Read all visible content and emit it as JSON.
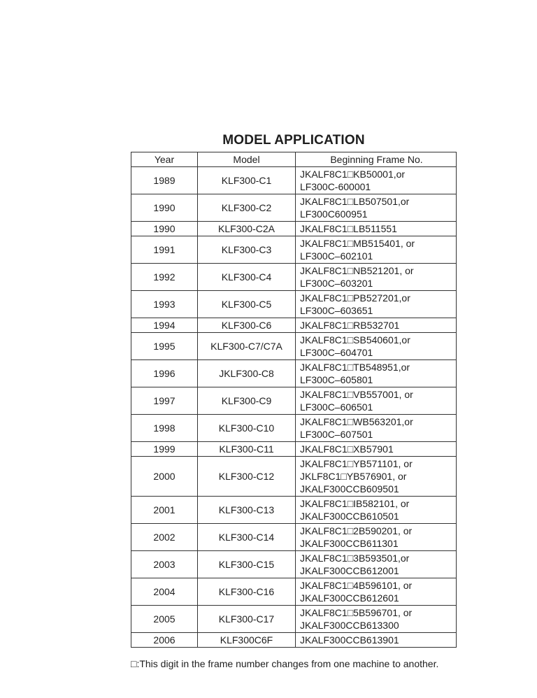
{
  "title": "MODEL APPLICATION",
  "headers": {
    "year": "Year",
    "model": "Model",
    "frame": "Beginning Frame No."
  },
  "rows": [
    {
      "year": "1989",
      "model": "KLF300-C1",
      "frame": [
        "JKALF8C1□KB50001,or",
        "LF300C-600001"
      ]
    },
    {
      "year": "1990",
      "model": "KLF300-C2",
      "frame": [
        "JKALF8C1□LB507501,or",
        "LF300C600951"
      ]
    },
    {
      "year": "1990",
      "model": "KLF300-C2A",
      "frame": [
        "JKALF8C1□LB511551"
      ]
    },
    {
      "year": "1991",
      "model": "KLF300-C3",
      "frame": [
        "JKALF8C1□MB515401, or",
        "LF300C–602101"
      ]
    },
    {
      "year": "1992",
      "model": "KLF300-C4",
      "frame": [
        "JKALF8C1□NB521201, or",
        "LF300C–603201"
      ]
    },
    {
      "year": "1993",
      "model": "KLF300-C5",
      "frame": [
        "JKALF8C1□PB527201,or",
        "LF300C–603651"
      ]
    },
    {
      "year": "1994",
      "model": "KLF300-C6",
      "frame": [
        "JKALF8C1□RB532701"
      ]
    },
    {
      "year": "1995",
      "model": "KLF300-C7/C7A",
      "frame": [
        "JKALF8C1□SB540601,or",
        "LF300C–604701"
      ]
    },
    {
      "year": "1996",
      "model": "JKLF300-C8",
      "frame": [
        "JKALF8C1□TB548951,or",
        "LF300C–605801"
      ]
    },
    {
      "year": "1997",
      "model": "KLF300-C9",
      "frame": [
        "JKALF8C1□VB557001, or",
        "LF300C–606501"
      ]
    },
    {
      "year": "1998",
      "model": "KLF300-C10",
      "frame": [
        "JKALF8C1□WB563201,or",
        "LF300C–607501"
      ]
    },
    {
      "year": "1999",
      "model": "KLF300-C11",
      "frame": [
        "JKALF8C1□XB57901"
      ]
    },
    {
      "year": "2000",
      "model": "KLF300-C12",
      "frame": [
        "JKALF8C1□YB571101, or",
        "JKLF8C1□YB576901, or",
        "JKALF300CCB609501"
      ]
    },
    {
      "year": "2001",
      "model": "KLF300-C13",
      "frame": [
        "JKALF8C1□IB582101, or",
        "JKALF300CCB610501"
      ]
    },
    {
      "year": "2002",
      "model": "KLF300-C14",
      "frame": [
        "JKALF8C1□2B590201, or",
        "JKALF300CCB611301"
      ]
    },
    {
      "year": "2003",
      "model": "KLF300-C15",
      "frame": [
        "JKALF8C1□3B593501,or",
        "JKALF300CCB612001"
      ]
    },
    {
      "year": "2004",
      "model": "KLF300-C16",
      "frame": [
        "JKALF8C1□4B596101, or",
        "JKALF300CCB612601"
      ]
    },
    {
      "year": "2005",
      "model": "KLF300-C17",
      "frame": [
        "JKALF8C1□5B596701, or",
        "JKALF300CCB613300"
      ]
    },
    {
      "year": "2006",
      "model": "KLF300C6F",
      "frame": [
        "JKALF300CCB613901"
      ]
    }
  ],
  "footnote": "□:This digit in the frame number changes from one machine to another."
}
